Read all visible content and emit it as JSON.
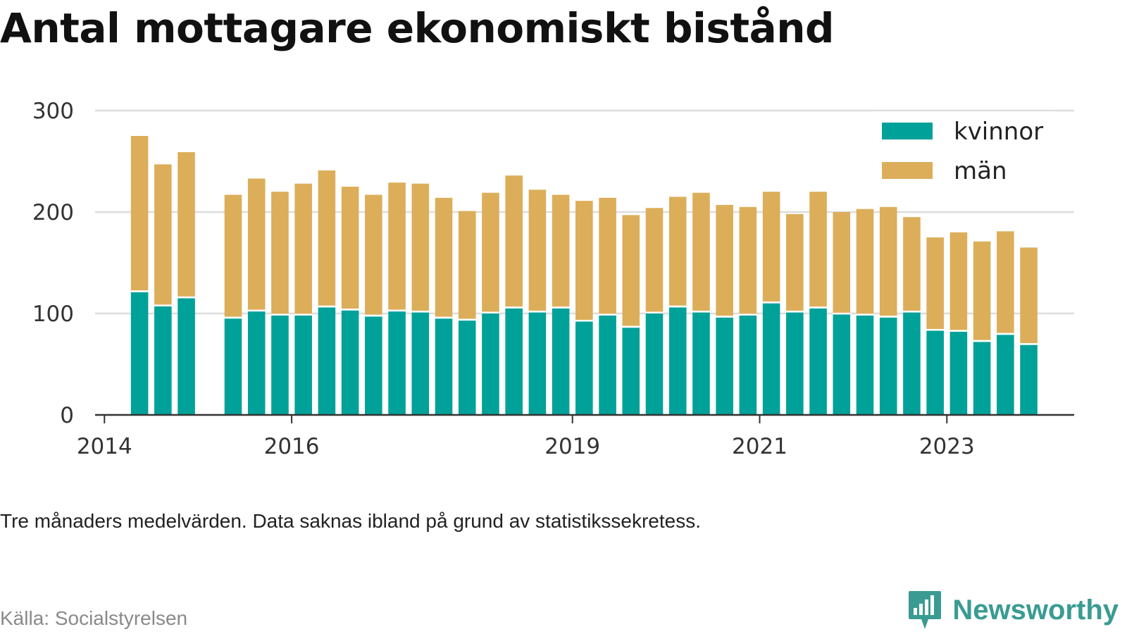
{
  "title": "Antal mottagare ekonomiskt bistånd",
  "note": "Tre månaders medelvärden. Data saknas ibland på grund av statistikssekretess.",
  "source": "Källa: Socialstyrelsen",
  "brand": {
    "name": "Newsworthy",
    "icon": "newsworthy-logo-icon",
    "color": "#3a9b92"
  },
  "colors": {
    "kvinnor": "#00a199",
    "man": "#dcae5a",
    "grid": "#dddddd",
    "axis": "#333333"
  },
  "chart_data": {
    "type": "bar",
    "stacked": true,
    "title": "Antal mottagare ekonomiskt bistånd",
    "xlabel": "",
    "ylabel": "",
    "ylim": [
      0,
      300
    ],
    "yticks": [
      0,
      100,
      200,
      300
    ],
    "xticks": [
      {
        "label": "2014",
        "x": 2014.0
      },
      {
        "label": "2016",
        "x": 2016.0
      },
      {
        "label": "2019",
        "x": 2019.0
      },
      {
        "label": "2021",
        "x": 2021.0
      },
      {
        "label": "2023",
        "x": 2023.0
      }
    ],
    "grid": true,
    "legend_position": "top-right",
    "x": [
      2014.375,
      2014.625,
      2014.875,
      2015.375,
      2015.625,
      2015.875,
      2016.125,
      2016.375,
      2016.625,
      2016.875,
      2017.125,
      2017.375,
      2017.625,
      2017.875,
      2018.125,
      2018.375,
      2018.625,
      2018.875,
      2019.125,
      2019.375,
      2019.625,
      2019.875,
      2020.125,
      2020.375,
      2020.625,
      2020.875,
      2021.125,
      2021.375,
      2021.625,
      2021.875,
      2022.125,
      2022.375,
      2022.625,
      2022.875,
      2023.125,
      2023.375,
      2023.625,
      2023.875
    ],
    "series": [
      {
        "name": "kvinnor",
        "color": "#00a199",
        "values": [
          121,
          107,
          115,
          95,
          102,
          98,
          98,
          106,
          103,
          97,
          102,
          101,
          95,
          93,
          100,
          105,
          101,
          105,
          92,
          98,
          86,
          100,
          106,
          101,
          96,
          98,
          110,
          101,
          105,
          99,
          98,
          96,
          101,
          83,
          82,
          72,
          79,
          69
        ]
      },
      {
        "name": "män",
        "color": "#dcae5a",
        "values": [
          154,
          140,
          144,
          122,
          131,
          122,
          130,
          135,
          122,
          120,
          127,
          127,
          119,
          108,
          119,
          131,
          121,
          112,
          119,
          116,
          111,
          104,
          109,
          118,
          111,
          107,
          110,
          97,
          115,
          101,
          105,
          109,
          94,
          92,
          98,
          99,
          102,
          96
        ]
      }
    ]
  }
}
